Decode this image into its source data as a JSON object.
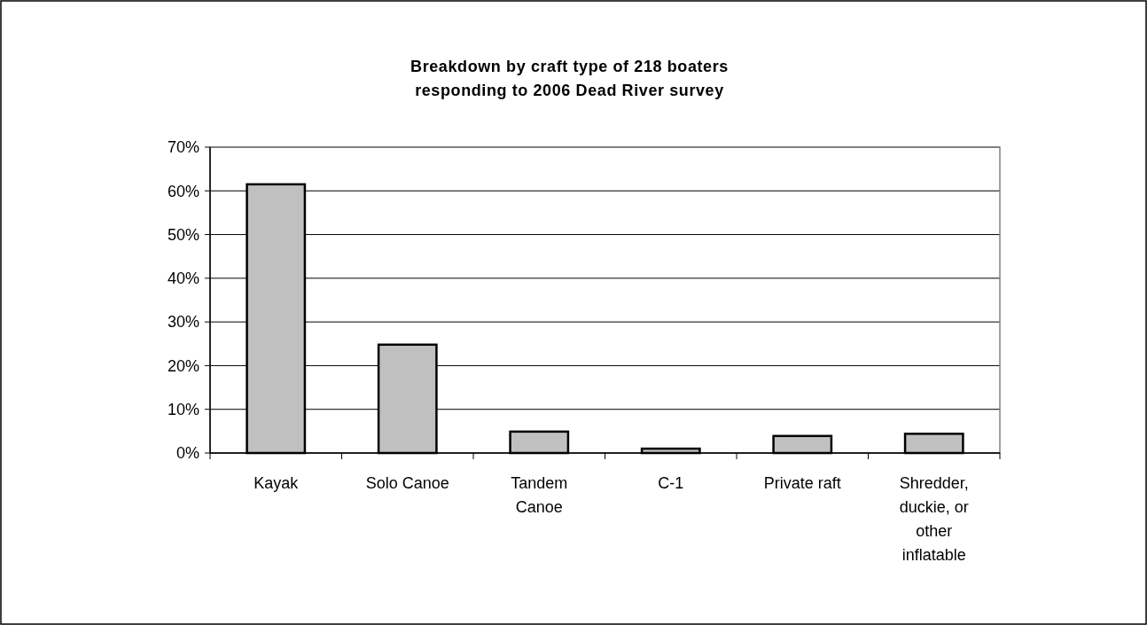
{
  "chart_data": {
    "type": "bar",
    "title": "Breakdown by craft type of 218 boaters responding to 2006 Dead River survey",
    "categories": [
      "Kayak",
      "Solo Canoe",
      "Tandem Canoe",
      "C-1",
      "Private raft",
      "Shredder, duckie, or other inflatable"
    ],
    "values": [
      61.5,
      24.8,
      4.9,
      1.0,
      3.9,
      4.4
    ],
    "color": "#c0c0c0",
    "ylim": [
      0,
      70
    ],
    "yticks": [
      {
        "value": 0,
        "label": "0%"
      },
      {
        "value": 10,
        "label": "10%"
      },
      {
        "value": 20,
        "label": "20%"
      },
      {
        "value": 30,
        "label": "30%"
      },
      {
        "value": 40,
        "label": "40%"
      },
      {
        "value": 50,
        "label": "50%"
      },
      {
        "value": 60,
        "label": "60%"
      },
      {
        "value": 70,
        "label": "70%"
      }
    ],
    "grid": "y"
  }
}
